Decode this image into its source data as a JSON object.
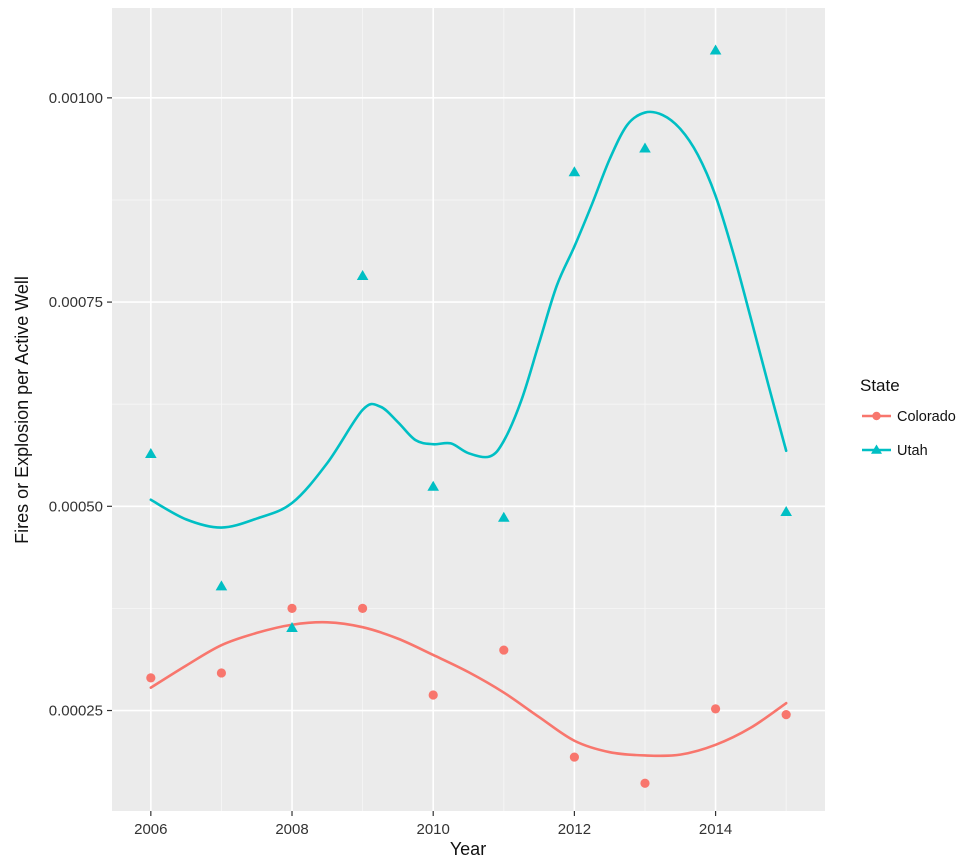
{
  "chart_data": {
    "type": "scatter",
    "title": "",
    "xlabel": "Year",
    "ylabel": "Fires or Explosion per Active Well",
    "xlim": [
      2005.45,
      2015.55
    ],
    "ylim": [
      0.000127,
      0.00111
    ],
    "x_ticks": [
      2006,
      2008,
      2010,
      2012,
      2014
    ],
    "x_tick_labels": [
      "2006",
      "2008",
      "2010",
      "2012",
      "2014"
    ],
    "y_ticks": [
      0.00025,
      0.0005,
      0.00075,
      0.001
    ],
    "y_tick_labels": [
      "0.00025",
      "0.00050",
      "0.00075",
      "0.00100"
    ],
    "grid": true,
    "legend": {
      "title": "State",
      "position": "right"
    },
    "x": [
      2006,
      2007,
      2008,
      2009,
      2010,
      2011,
      2012,
      2013,
      2014,
      2015
    ],
    "series": [
      {
        "name": "Colorado",
        "color": "#F8766D",
        "marker": "circle",
        "values": [
          0.00029,
          0.000296,
          0.000375,
          0.000375,
          0.000269,
          0.000324,
          0.000193,
          0.000161,
          0.000252,
          0.000245
        ],
        "smooth": [
          [
            2006,
            0.000278
          ],
          [
            2006.5,
            0.000305
          ],
          [
            2007,
            0.00033
          ],
          [
            2007.5,
            0.000345
          ],
          [
            2008,
            0.000355
          ],
          [
            2008.5,
            0.000358
          ],
          [
            2009,
            0.000352
          ],
          [
            2009.5,
            0.000338
          ],
          [
            2010,
            0.000318
          ],
          [
            2010.5,
            0.000297
          ],
          [
            2011,
            0.000272
          ],
          [
            2011.5,
            0.000242
          ],
          [
            2012,
            0.000213
          ],
          [
            2012.5,
            0.000199
          ],
          [
            2013,
            0.000195
          ],
          [
            2013.5,
            0.000196
          ],
          [
            2014,
            0.000208
          ],
          [
            2014.5,
            0.000229
          ],
          [
            2015,
            0.000259
          ]
        ]
      },
      {
        "name": "Utah",
        "color": "#00BFC4",
        "marker": "triangle",
        "values": [
          0.000564,
          0.000402,
          0.000351,
          0.000782,
          0.000524,
          0.000486,
          0.000909,
          0.000938,
          0.001058,
          0.000493
        ],
        "smooth": [
          [
            2006,
            0.000508
          ],
          [
            2006.5,
            0.000484
          ],
          [
            2007,
            0.000474
          ],
          [
            2007.5,
            0.000485
          ],
          [
            2008,
            0.000504
          ],
          [
            2008.5,
            0.000553
          ],
          [
            2009,
            0.000618
          ],
          [
            2009.25,
            0.000622
          ],
          [
            2009.5,
            0.000603
          ],
          [
            2009.75,
            0.000581
          ],
          [
            2010,
            0.000576
          ],
          [
            2010.25,
            0.000577
          ],
          [
            2010.5,
            0.000565
          ],
          [
            2010.8,
            0.000561
          ],
          [
            2011,
            0.00058
          ],
          [
            2011.25,
            0.00063
          ],
          [
            2011.5,
            0.0007
          ],
          [
            2011.75,
            0.00077
          ],
          [
            2012,
            0.000818
          ],
          [
            2012.25,
            0.00087
          ],
          [
            2012.5,
            0.000925
          ],
          [
            2012.75,
            0.000967
          ],
          [
            2013,
            0.000982
          ],
          [
            2013.25,
            0.000979
          ],
          [
            2013.5,
            0.000962
          ],
          [
            2013.75,
            0.00093
          ],
          [
            2014,
            0.00088
          ],
          [
            2014.25,
            0.00081
          ],
          [
            2014.5,
            0.00073
          ],
          [
            2014.75,
            0.000648
          ],
          [
            2015,
            0.000568
          ]
        ]
      }
    ]
  }
}
